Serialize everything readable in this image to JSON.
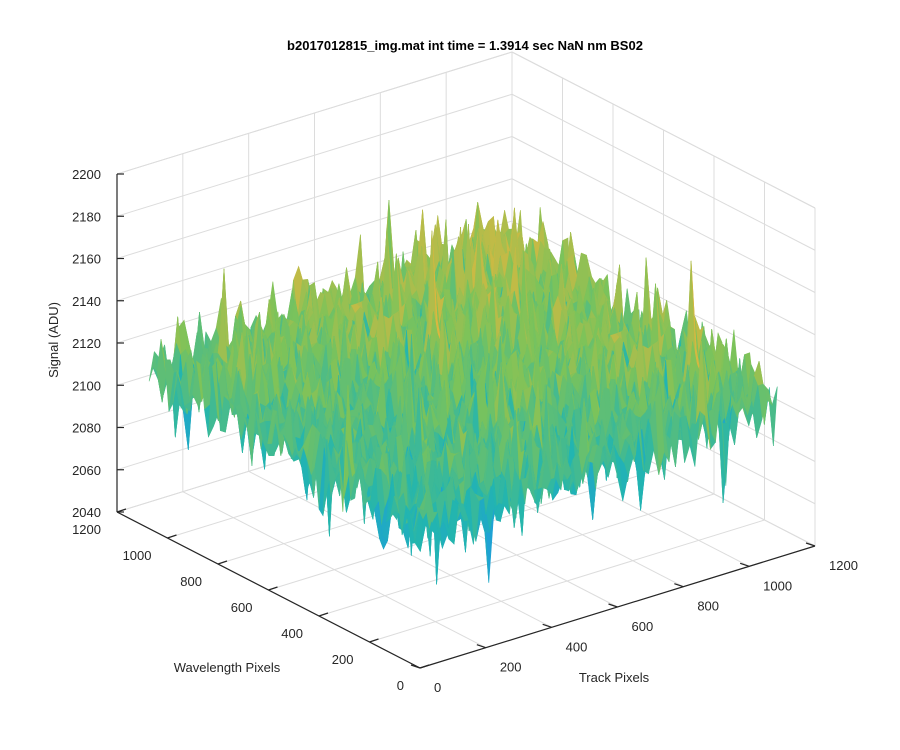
{
  "chart_data": {
    "type": "surface",
    "title": "b2017012815_img.mat int time = 1.3914 sec  NaN nm BS02",
    "xlabel": "Track Pixels",
    "ylabel": "Wavelength Pixels",
    "zlabel": "Signal (ADU)",
    "xlim": [
      0,
      1200
    ],
    "ylim": [
      0,
      1200
    ],
    "zlim": [
      2040,
      2200
    ],
    "x_ticks": [
      "0",
      "200",
      "400",
      "600",
      "800",
      "1000",
      "1200"
    ],
    "y_ticks": [
      "0",
      "200",
      "400",
      "600",
      "800",
      "1000",
      "1200"
    ],
    "z_ticks": [
      "2040",
      "2060",
      "2080",
      "2100",
      "2120",
      "2140",
      "2160",
      "2180",
      "2200"
    ],
    "grid": true,
    "colormap": [
      "#0072bd",
      "#1e9be0",
      "#22b5b0",
      "#7cc35a",
      "#e6b63c",
      "#f4c542"
    ],
    "surface_summary": {
      "mean_signal": 2115,
      "min_signal": 2040,
      "max_signal": 2190,
      "notes": "noisy surface, higher (yellow) toward back corner, lower (blue) toward front"
    }
  }
}
